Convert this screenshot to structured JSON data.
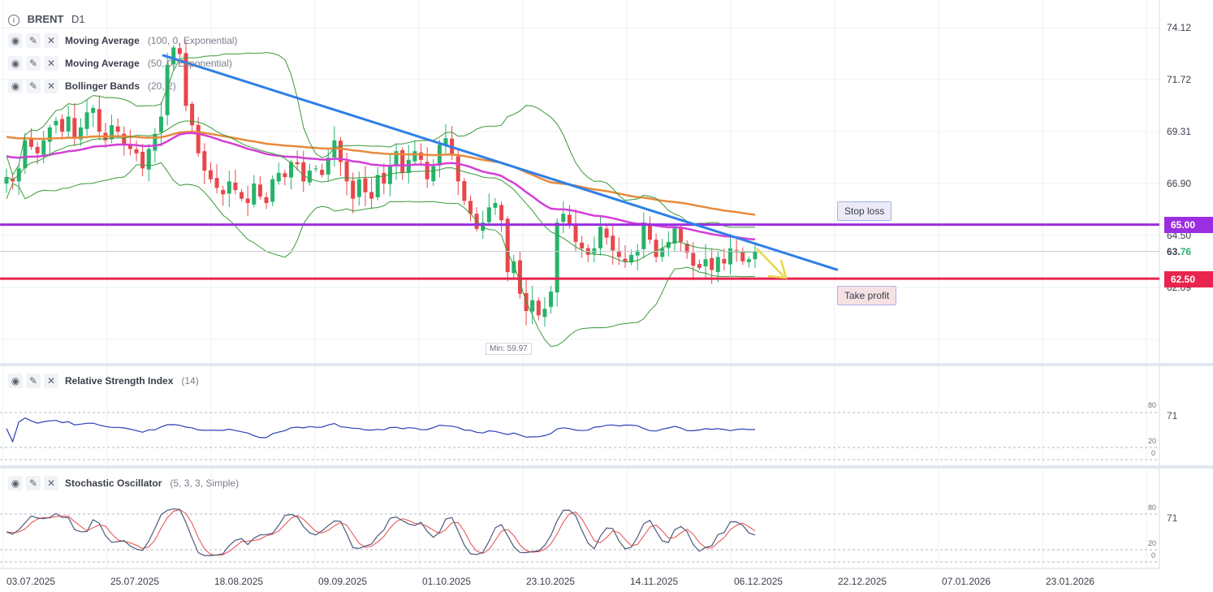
{
  "header": {
    "symbol": "BRENT",
    "timeframe": "D1"
  },
  "indicators": [
    {
      "name": "Moving Average",
      "params": "(100, 0, Exponential)"
    },
    {
      "name": "Moving Average",
      "params": "(50, 0, Exponential)"
    },
    {
      "name": "Bollinger Bands",
      "params": "(20, 2)"
    }
  ],
  "rsi_panel": {
    "name": "Relative Strength Index",
    "params": "(14)",
    "levels": [
      "80",
      "71",
      "20",
      "0"
    ]
  },
  "stoch_panel": {
    "name": "Stochastic Oscillator",
    "params": "(5, 3, 3, Simple)",
    "levels": [
      "80",
      "71",
      "20",
      "0"
    ]
  },
  "price_axis": [
    "74.12",
    "71.72",
    "69.31",
    "66.90",
    "64.50",
    "62.09"
  ],
  "current_price": {
    "main": "63.",
    "fraction": "76"
  },
  "stop_loss": {
    "label": "Stop loss",
    "price": "65.00"
  },
  "take_profit": {
    "label": "Take profit",
    "price": "62.50"
  },
  "min_label": "Min: 59.97",
  "date_axis": [
    "03.07.2025",
    "25.07.2025",
    "18.08.2025",
    "09.09.2025",
    "01.10.2025",
    "23.10.2025",
    "14.11.2025",
    "06.12.2025",
    "22.12.2025",
    "07.01.2026",
    "23.01.2026"
  ],
  "colors": {
    "bull": "#26b36b",
    "bear": "#e8474b",
    "ema100": "#e88a3c",
    "ema50": "#d43fd6",
    "bollinger": "#3a9a3a",
    "trendline": "#2f7fe8",
    "stop_loss_line": "#9b2ee0",
    "take_profit_line": "#e8244f",
    "arrow": "#e6d84a",
    "rsi": "#2c3fb8",
    "stoch_k": "#4a5a7a",
    "stoch_d": "#e84a4a"
  },
  "chart_data": {
    "type": "candlestick",
    "symbol": "BRENT",
    "timeframe": "D1",
    "ylim": [
      59.0,
      74.8
    ],
    "x_range": [
      "03.07.2025",
      "06.02.2026"
    ],
    "levels": {
      "stop_loss": 65.0,
      "take_profit": 62.5,
      "current": 63.76,
      "min": 59.97
    },
    "candles_close": [
      67.2,
      67.0,
      67.6,
      68.9,
      68.6,
      68.3,
      68.9,
      69.5,
      69.8,
      69.3,
      70.0,
      69.0,
      69.5,
      70.2,
      70.4,
      69.3,
      68.9,
      69.6,
      69.3,
      68.7,
      68.5,
      68.3,
      67.6,
      68.5,
      69.2,
      70.0,
      72.4,
      73.2,
      72.9,
      70.5,
      69.6,
      68.3,
      67.5,
      67.1,
      66.7,
      66.4,
      67.0,
      66.6,
      66.2,
      66.0,
      66.9,
      66.3,
      66.0,
      67.1,
      67.4,
      67.2,
      67.9,
      67.8,
      67.0,
      67.5,
      67.6,
      67.3,
      68.1,
      68.9,
      67.9,
      67.0,
      66.2,
      67.1,
      66.5,
      66.2,
      67.3,
      66.9,
      67.7,
      68.4,
      67.4,
      68.0,
      68.4,
      68.0,
      67.1,
      67.7,
      68.7,
      69.0,
      68.2,
      67.0,
      66.1,
      65.5,
      64.8,
      65.1,
      65.8,
      66.0,
      65.2,
      62.8,
      63.3,
      61.8,
      61.0,
      61.5,
      60.8,
      61.1,
      61.9,
      65.1,
      65.5,
      65.0,
      64.2,
      63.9,
      63.6,
      63.9,
      64.9,
      64.4,
      63.8,
      63.5,
      63.3,
      63.6,
      63.8,
      65.1,
      64.3,
      63.5,
      63.9,
      64.2,
      64.9,
      64.2,
      63.7,
      63.1,
      63.0,
      63.4,
      62.9,
      63.5,
      63.2,
      63.9,
      63.8,
      63.3,
      63.4,
      63.76
    ],
    "ema100_start_end": [
      69.1,
      65.6
    ],
    "ema50_start_end": [
      68.2,
      64.3
    ],
    "trendline": [
      [
        72.85,
        "25.07.2025"
      ],
      [
        62.9,
        "22.12.2025"
      ]
    ]
  }
}
